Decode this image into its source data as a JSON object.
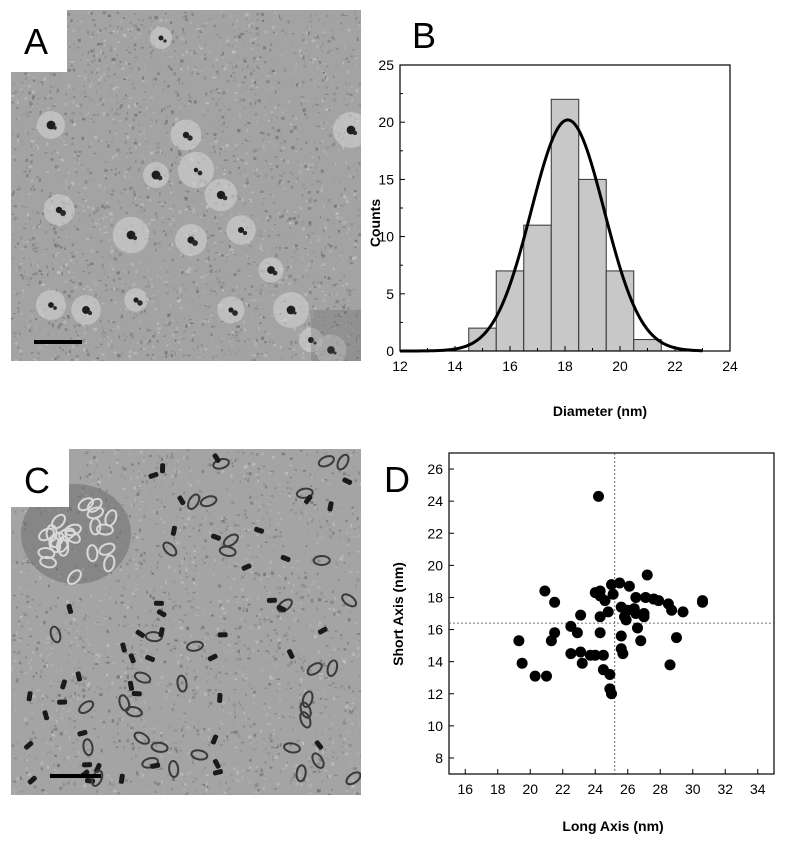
{
  "panels": [
    {
      "letter": "A"
    },
    {
      "letter": "B"
    },
    {
      "letter": "C"
    },
    {
      "letter": "D"
    }
  ],
  "chart_data": [
    {
      "type": "bar",
      "panel": "B",
      "xlabel": "Diameter (nm)",
      "ylabel": "Counts",
      "xlim": [
        12,
        24
      ],
      "ylim": [
        0,
        25
      ],
      "xticks": [
        12,
        14,
        16,
        18,
        20,
        22,
        24
      ],
      "yticks": [
        0,
        5,
        10,
        15,
        20,
        25
      ],
      "bin_width": 1,
      "bin_centers": [
        15,
        16,
        17,
        18,
        19,
        20,
        21
      ],
      "values": [
        2,
        7,
        11,
        22,
        15,
        7,
        1
      ],
      "bar_color": "#c8c8c8",
      "fit": {
        "type": "gaussian",
        "center": 18.1,
        "sigma": 1.33,
        "amplitude": 20.2,
        "range": [
          12,
          23
        ]
      },
      "grid": false
    },
    {
      "type": "scatter",
      "panel": "D",
      "xlabel": "Long Axis (nm)",
      "ylabel": "Short Axis (nm)",
      "xlim": [
        15,
        35
      ],
      "ylim": [
        7,
        27
      ],
      "xticks": [
        16,
        18,
        20,
        22,
        24,
        26,
        28,
        30,
        32,
        34
      ],
      "yticks": [
        8,
        10,
        12,
        14,
        16,
        18,
        20,
        22,
        24,
        26
      ],
      "mean_x": 25.2,
      "mean_y": 16.4,
      "points": [
        [
          24.2,
          24.3
        ],
        [
          19.3,
          15.3
        ],
        [
          19.5,
          13.9
        ],
        [
          20.3,
          13.1
        ],
        [
          21.0,
          13.1
        ],
        [
          20.9,
          18.4
        ],
        [
          21.5,
          17.7
        ],
        [
          21.3,
          15.3
        ],
        [
          21.5,
          15.8
        ],
        [
          22.5,
          16.2
        ],
        [
          22.5,
          14.5
        ],
        [
          22.9,
          15.8
        ],
        [
          23.1,
          16.9
        ],
        [
          23.1,
          14.6
        ],
        [
          23.2,
          13.9
        ],
        [
          23.7,
          14.4
        ],
        [
          24.0,
          14.4
        ],
        [
          24.3,
          15.8
        ],
        [
          24.3,
          16.8
        ],
        [
          24.3,
          18.1
        ],
        [
          24.3,
          18.4
        ],
        [
          24.6,
          17.8
        ],
        [
          24.5,
          14.4
        ],
        [
          24.5,
          13.5
        ],
        [
          24.9,
          13.2
        ],
        [
          24.9,
          12.3
        ],
        [
          25.0,
          12.0
        ],
        [
          24.8,
          17.1
        ],
        [
          25.1,
          18.2
        ],
        [
          25.0,
          18.8
        ],
        [
          25.5,
          18.9
        ],
        [
          25.6,
          17.4
        ],
        [
          25.6,
          15.6
        ],
        [
          25.6,
          14.8
        ],
        [
          25.7,
          14.5
        ],
        [
          25.8,
          16.8
        ],
        [
          26.0,
          17.2
        ],
        [
          26.1,
          18.7
        ],
        [
          26.4,
          17.3
        ],
        [
          26.5,
          17.0
        ],
        [
          26.6,
          16.1
        ],
        [
          26.8,
          15.3
        ],
        [
          26.5,
          18.0
        ],
        [
          27.1,
          18.0
        ],
        [
          27.2,
          19.4
        ],
        [
          27.6,
          17.9
        ],
        [
          27.9,
          17.8
        ],
        [
          27.0,
          17.0
        ],
        [
          27.0,
          16.8
        ],
        [
          28.5,
          17.6
        ],
        [
          28.7,
          17.2
        ],
        [
          28.6,
          13.8
        ],
        [
          29.0,
          15.5
        ],
        [
          29.4,
          17.1
        ],
        [
          30.6,
          17.8
        ],
        [
          30.6,
          17.7
        ],
        [
          25.9,
          16.6
        ],
        [
          24.0,
          18.3
        ]
      ],
      "marker_color": "#000000",
      "grid": false
    }
  ]
}
